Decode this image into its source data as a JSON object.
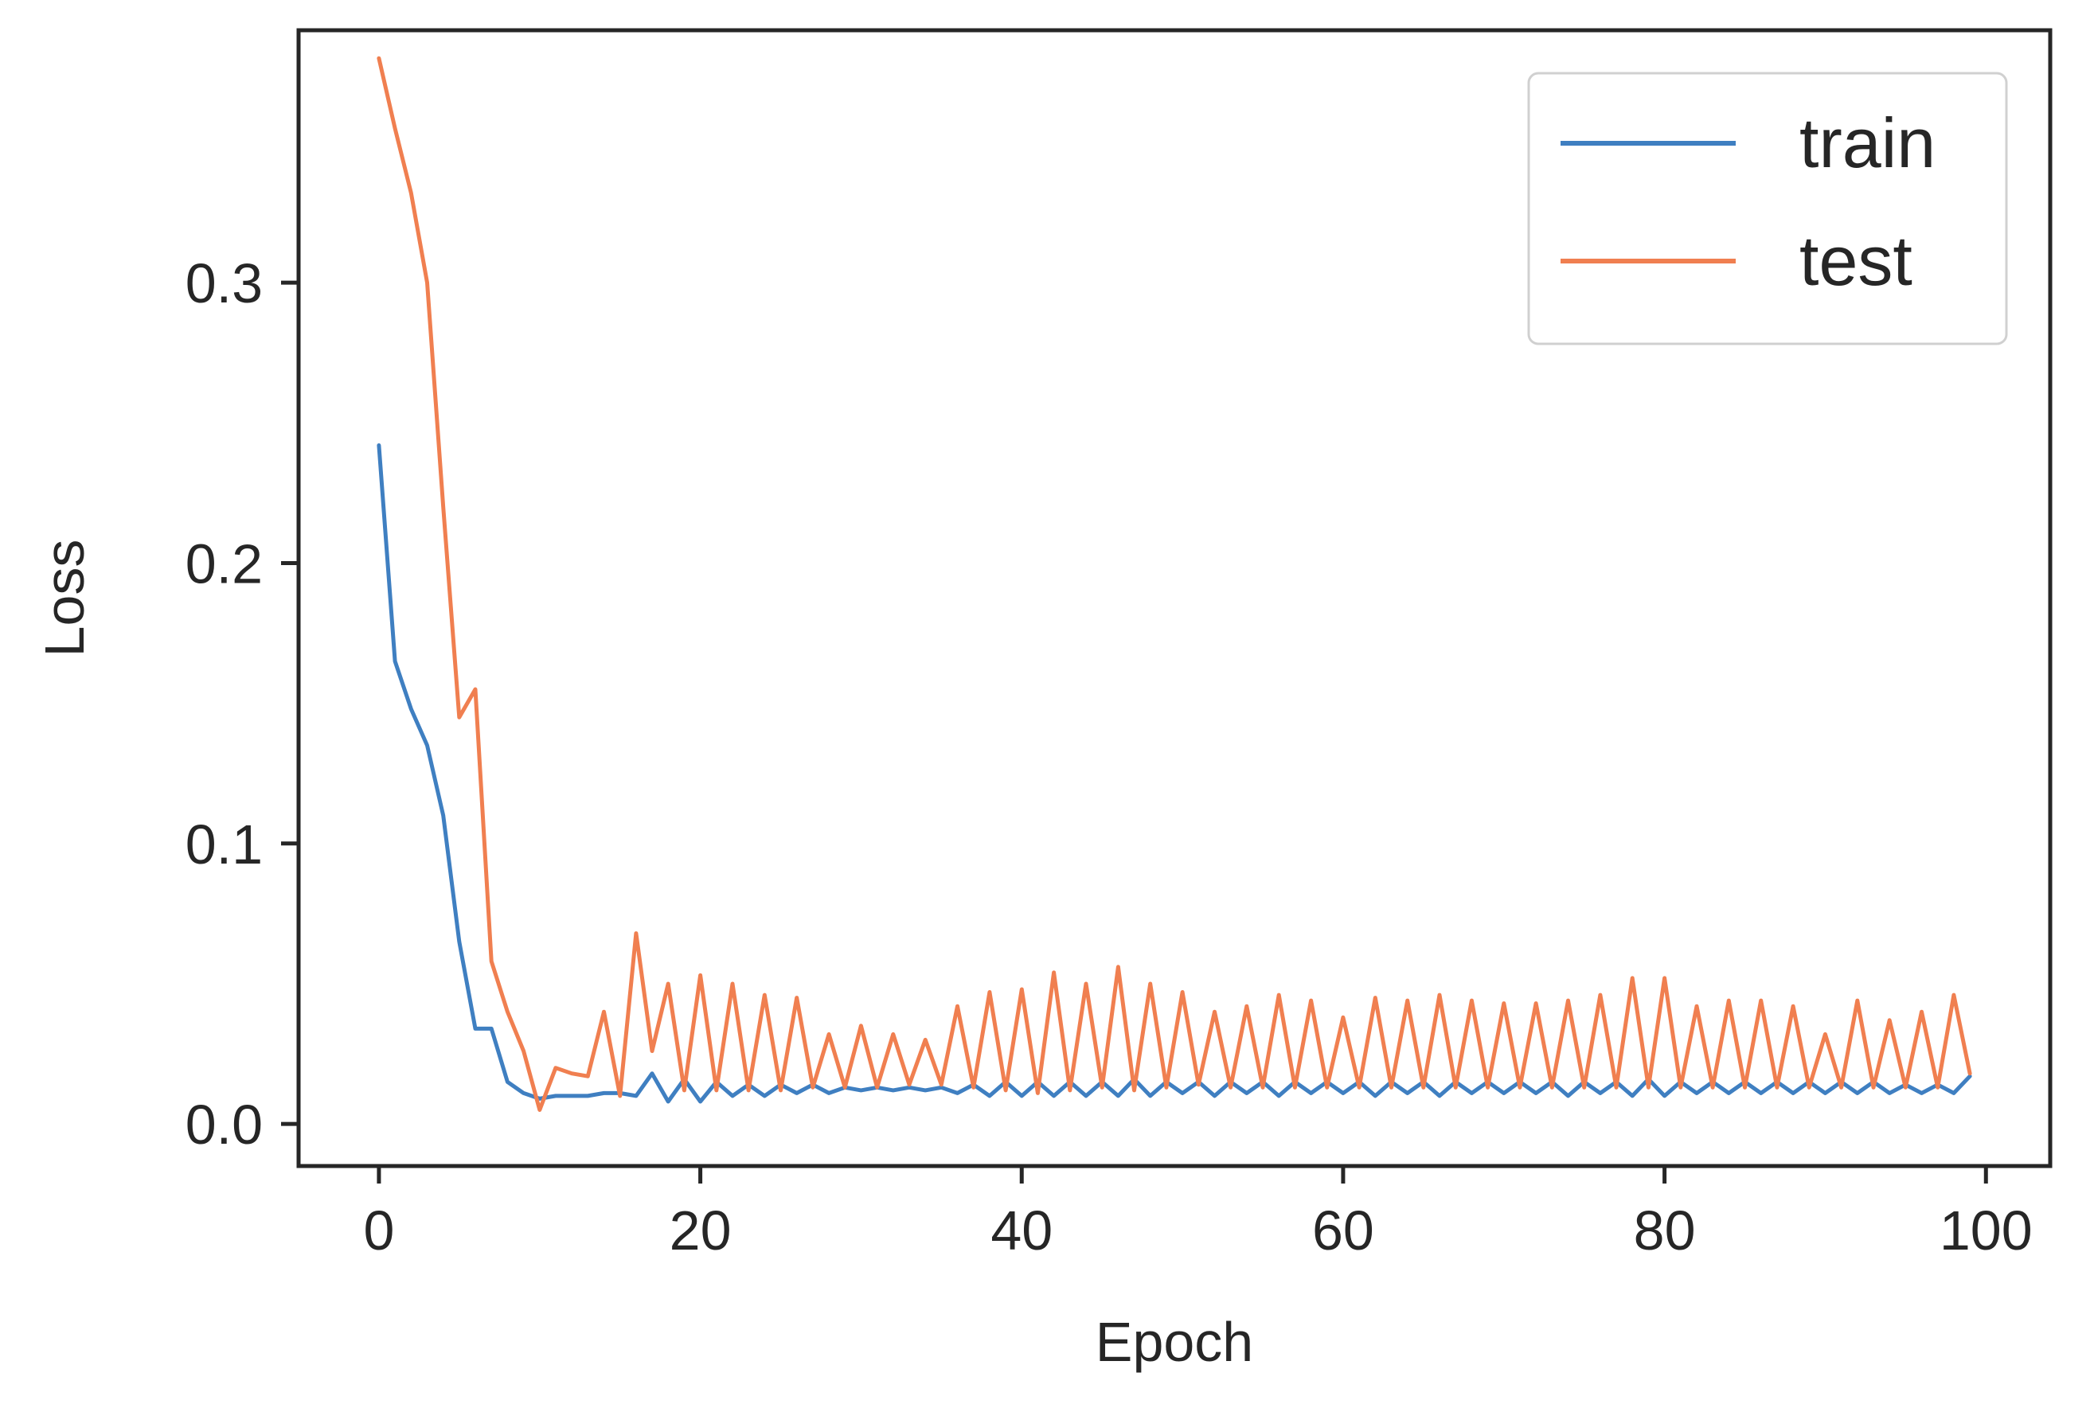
{
  "chart_data": {
    "type": "line",
    "title": "",
    "xlabel": "Epoch",
    "ylabel": "Loss",
    "xlim": [
      -5,
      104
    ],
    "ylim": [
      -0.015,
      0.39
    ],
    "xticks": [
      0,
      20,
      40,
      60,
      80,
      100
    ],
    "yticks": [
      0.0,
      0.1,
      0.2,
      0.3
    ],
    "xtick_labels": [
      "0",
      "20",
      "40",
      "60",
      "80",
      "100"
    ],
    "ytick_labels": [
      "0.0",
      "0.1",
      "0.2",
      "0.3"
    ],
    "grid": false,
    "legend": "top-right",
    "series": [
      {
        "name": "train",
        "color": "#3f7fc1",
        "x": [
          0,
          1,
          2,
          3,
          4,
          5,
          6,
          7,
          8,
          9,
          10,
          11,
          12,
          13,
          14,
          15,
          16,
          17,
          18,
          19,
          20,
          21,
          22,
          23,
          24,
          25,
          26,
          27,
          28,
          29,
          30,
          31,
          32,
          33,
          34,
          35,
          36,
          37,
          38,
          39,
          40,
          41,
          42,
          43,
          44,
          45,
          46,
          47,
          48,
          49,
          50,
          51,
          52,
          53,
          54,
          55,
          56,
          57,
          58,
          59,
          60,
          61,
          62,
          63,
          64,
          65,
          66,
          67,
          68,
          69,
          70,
          71,
          72,
          73,
          74,
          75,
          76,
          77,
          78,
          79,
          80,
          81,
          82,
          83,
          84,
          85,
          86,
          87,
          88,
          89,
          90,
          91,
          92,
          93,
          94,
          95,
          96,
          97,
          98,
          99
        ],
        "y": [
          0.242,
          0.165,
          0.148,
          0.135,
          0.11,
          0.065,
          0.034,
          0.034,
          0.015,
          0.011,
          0.009,
          0.01,
          0.01,
          0.01,
          0.011,
          0.011,
          0.01,
          0.018,
          0.008,
          0.016,
          0.008,
          0.015,
          0.01,
          0.014,
          0.01,
          0.014,
          0.011,
          0.014,
          0.011,
          0.013,
          0.012,
          0.013,
          0.012,
          0.013,
          0.012,
          0.013,
          0.011,
          0.014,
          0.01,
          0.015,
          0.01,
          0.015,
          0.01,
          0.015,
          0.01,
          0.015,
          0.01,
          0.016,
          0.01,
          0.015,
          0.011,
          0.015,
          0.01,
          0.015,
          0.011,
          0.015,
          0.01,
          0.015,
          0.011,
          0.015,
          0.011,
          0.015,
          0.01,
          0.015,
          0.011,
          0.015,
          0.01,
          0.015,
          0.011,
          0.015,
          0.011,
          0.015,
          0.011,
          0.015,
          0.01,
          0.015,
          0.011,
          0.015,
          0.01,
          0.016,
          0.01,
          0.015,
          0.011,
          0.015,
          0.011,
          0.015,
          0.011,
          0.015,
          0.011,
          0.015,
          0.011,
          0.015,
          0.011,
          0.015,
          0.011,
          0.014,
          0.011,
          0.014,
          0.011,
          0.017
        ]
      },
      {
        "name": "test",
        "color": "#f07f50",
        "x": [
          0,
          1,
          2,
          3,
          4,
          5,
          6,
          7,
          8,
          9,
          10,
          11,
          12,
          13,
          14,
          15,
          16,
          17,
          18,
          19,
          20,
          21,
          22,
          23,
          24,
          25,
          26,
          27,
          28,
          29,
          30,
          31,
          32,
          33,
          34,
          35,
          36,
          37,
          38,
          39,
          40,
          41,
          42,
          43,
          44,
          45,
          46,
          47,
          48,
          49,
          50,
          51,
          52,
          53,
          54,
          55,
          56,
          57,
          58,
          59,
          60,
          61,
          62,
          63,
          64,
          65,
          66,
          67,
          68,
          69,
          70,
          71,
          72,
          73,
          74,
          75,
          76,
          77,
          78,
          79,
          80,
          81,
          82,
          83,
          84,
          85,
          86,
          87,
          88,
          89,
          90,
          91,
          92,
          93,
          94,
          95,
          96,
          97,
          98,
          99
        ],
        "y": [
          0.38,
          0.355,
          0.332,
          0.3,
          0.22,
          0.145,
          0.155,
          0.058,
          0.04,
          0.026,
          0.005,
          0.02,
          0.018,
          0.017,
          0.04,
          0.01,
          0.068,
          0.026,
          0.05,
          0.012,
          0.053,
          0.012,
          0.05,
          0.012,
          0.046,
          0.012,
          0.045,
          0.013,
          0.032,
          0.013,
          0.035,
          0.013,
          0.032,
          0.014,
          0.03,
          0.014,
          0.042,
          0.013,
          0.047,
          0.012,
          0.048,
          0.011,
          0.054,
          0.012,
          0.05,
          0.013,
          0.056,
          0.012,
          0.05,
          0.013,
          0.047,
          0.014,
          0.04,
          0.013,
          0.042,
          0.013,
          0.046,
          0.013,
          0.044,
          0.013,
          0.038,
          0.013,
          0.045,
          0.013,
          0.044,
          0.013,
          0.046,
          0.013,
          0.044,
          0.013,
          0.043,
          0.013,
          0.043,
          0.013,
          0.044,
          0.013,
          0.046,
          0.013,
          0.052,
          0.013,
          0.052,
          0.013,
          0.042,
          0.013,
          0.044,
          0.013,
          0.044,
          0.013,
          0.042,
          0.013,
          0.032,
          0.013,
          0.044,
          0.013,
          0.037,
          0.013,
          0.04,
          0.013,
          0.046,
          0.018
        ]
      }
    ]
  }
}
